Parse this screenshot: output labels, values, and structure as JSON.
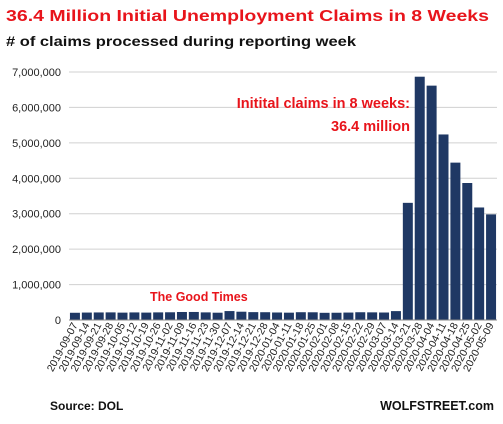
{
  "chart_data": {
    "type": "bar",
    "title": "36.4 Million Initial Unemployment Claims in 8 Weeks",
    "subtitle": "# of claims processed during reporting week",
    "categories": [
      "2019-09-07",
      "2019-09-14",
      "2019-09-21",
      "2019-09-28",
      "2019-10-05",
      "2019-10-12",
      "2019-10-19",
      "2019-10-26",
      "2019-11-02",
      "2019-11-09",
      "2019-11-16",
      "2019-11-23",
      "2019-11-30",
      "2019-12-07",
      "2019-12-14",
      "2019-12-21",
      "2019-12-28",
      "2020-01-04",
      "2020-01-11",
      "2020-01-18",
      "2020-01-25",
      "2020-02-01",
      "2020-02-08",
      "2020-02-15",
      "2020-02-22",
      "2020-02-29",
      "2020-03-07",
      "2020-03-14",
      "2020-03-21",
      "2020-03-28",
      "2020-04-04",
      "2020-04-11",
      "2020-04-18",
      "2020-04-25",
      "2020-05-02",
      "2020-05-09"
    ],
    "values": [
      204000,
      210000,
      213000,
      215000,
      208000,
      214000,
      209000,
      215000,
      218000,
      226000,
      227000,
      215000,
      206000,
      252000,
      234000,
      222000,
      220000,
      212000,
      207000,
      220000,
      218000,
      203000,
      205000,
      210000,
      219000,
      216000,
      211000,
      251000,
      3307000,
      6867000,
      6615000,
      5237000,
      4442000,
      3867000,
      3176000,
      2981000
    ],
    "ylim": [
      0,
      7000000
    ],
    "yticks": [
      0,
      1000000,
      2000000,
      3000000,
      4000000,
      5000000,
      6000000,
      7000000
    ],
    "ytick_labels": [
      "0",
      "1,000,000",
      "2,000,000",
      "3,000,000",
      "4,000,000",
      "5,000,000",
      "6,000,000",
      "7,000,000"
    ],
    "xtick_labels": [
      "2019-09-07",
      "2019-09-14",
      "2019-09-21",
      "2019-09-28",
      "2019-10-05",
      "2019-10-12",
      "2019-10-19",
      "2019-10-26",
      "2019-11-02",
      "2019-11-09",
      "2019-11-16",
      "2019-11-23",
      "2019-11-30",
      "2019-12-07",
      "2019-12-14",
      "2019-12-21",
      "2019-12-28",
      "2020-01-04",
      "2020-01-11",
      "2020-01-18",
      "2020-01-25",
      "2020-02-01",
      "2020-02-08",
      "2020-02-15",
      "2020-02-22",
      "2020-02-29",
      "2020-03-07",
      "2020-03-14",
      "2020-03-21",
      "2020-03-28",
      "2020-04-04",
      "2020-04-11",
      "2020-04-18",
      "2020-04-25",
      "2020-05-02",
      "2020-05-09"
    ],
    "grid": "horizontal",
    "annotations": {
      "peak_line1": "Initital claims in 8 weeks:",
      "peak_line2": "36.4 million",
      "good_times": "The Good Times"
    },
    "source": "Source: DOL",
    "credit": "WOLFSTREET.com"
  },
  "colors": {
    "bar": "#1f3864",
    "title": "#e8141b",
    "annotation": "#e8141b",
    "text": "#222222",
    "grid": "#d0d0d0"
  }
}
